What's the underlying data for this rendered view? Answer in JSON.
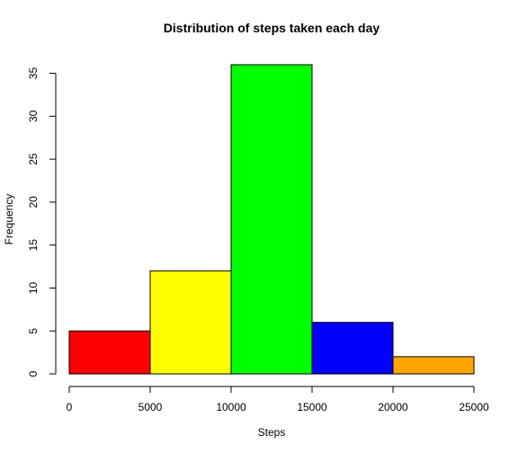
{
  "chart_data": {
    "type": "bar",
    "title": "Distribution of steps taken each day",
    "xlabel": "Steps",
    "ylabel": "Frequency",
    "bins": [
      {
        "from": 0,
        "to": 5000,
        "value": 5,
        "color": "#ff0000"
      },
      {
        "from": 5000,
        "to": 10000,
        "value": 12,
        "color": "#ffff00"
      },
      {
        "from": 10000,
        "to": 15000,
        "value": 36,
        "color": "#00ff00"
      },
      {
        "from": 15000,
        "to": 20000,
        "value": 6,
        "color": "#0000ff"
      },
      {
        "from": 20000,
        "to": 25000,
        "value": 2,
        "color": "#ffa500"
      }
    ],
    "xlim": [
      0,
      25000
    ],
    "ylim": [
      0,
      36
    ],
    "x_ticks": [
      0,
      5000,
      10000,
      15000,
      20000,
      25000
    ],
    "x_tick_labels": [
      "0",
      "5000",
      "10000",
      "15000",
      "20000",
      "25000"
    ],
    "y_ticks": [
      0,
      5,
      10,
      15,
      20,
      25,
      30,
      35
    ],
    "y_tick_labels": [
      "0",
      "5",
      "10",
      "15",
      "20",
      "25",
      "30",
      "35"
    ],
    "grid": false,
    "legend": "none"
  }
}
